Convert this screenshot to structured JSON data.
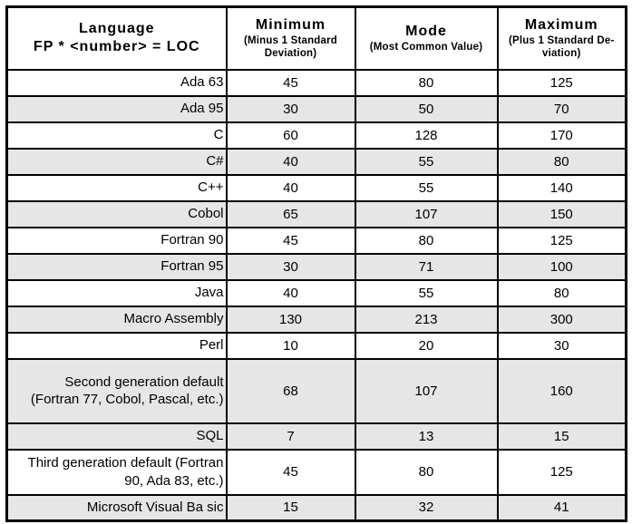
{
  "table": {
    "header": {
      "language": {
        "line1": "Language",
        "line2": "FP * <number> = LOC"
      },
      "minimum": {
        "title": "Minimum",
        "subtitle": "(Minus 1 Standard Deviation)"
      },
      "mode": {
        "title": "Mode",
        "subtitle": "(Most Common Value)"
      },
      "maximum": {
        "title": "Maximum",
        "subtitle": "(Plus 1 Standard De-viation)"
      }
    },
    "rows": [
      {
        "language": "Ada 63",
        "minimum": "45",
        "mode": "80",
        "maximum": "125"
      },
      {
        "language": "Ada 95",
        "minimum": "30",
        "mode": "50",
        "maximum": "70"
      },
      {
        "language": "C",
        "minimum": "60",
        "mode": "128",
        "maximum": "170"
      },
      {
        "language": "C#",
        "minimum": "40",
        "mode": "55",
        "maximum": "80"
      },
      {
        "language": "C++",
        "minimum": "40",
        "mode": "55",
        "maximum": "140"
      },
      {
        "language": "Cobol",
        "minimum": "65",
        "mode": "107",
        "maximum": "150"
      },
      {
        "language": "Fortran 90",
        "minimum": "45",
        "mode": "80",
        "maximum": "125"
      },
      {
        "language": "Fortran 95",
        "minimum": "30",
        "mode": "71",
        "maximum": "100"
      },
      {
        "language": "Java",
        "minimum": "40",
        "mode": "55",
        "maximum": "80"
      },
      {
        "language": "Macro Assembly",
        "minimum": "130",
        "mode": "213",
        "maximum": "300"
      },
      {
        "language": "Perl",
        "minimum": "10",
        "mode": "20",
        "maximum": "30"
      },
      {
        "language": "Second generation default (Fortran 77, Cobol, Pascal, etc.)",
        "minimum": "68",
        "mode": "107",
        "maximum": "160"
      },
      {
        "language": "SQL",
        "minimum": "7",
        "mode": "13",
        "maximum": "15"
      },
      {
        "language": "Third generation default (Fortran 90, Ada 83, etc.)",
        "minimum": "45",
        "mode": "80",
        "maximum": "125"
      },
      {
        "language": "Microsoft Visual Ba sic",
        "minimum": "15",
        "mode": "32",
        "maximum": "41"
      }
    ]
  },
  "colors": {
    "row_shaded": "#e6e6e6",
    "border": "#000000",
    "background": "#ffffff",
    "text": "#000000"
  }
}
